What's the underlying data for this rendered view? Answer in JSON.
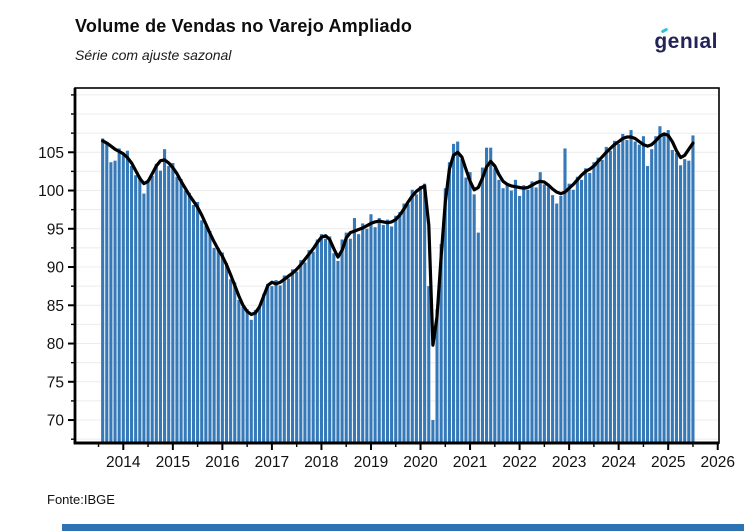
{
  "header": {
    "title": "Volume de Vendas no Varejo Ampliado",
    "subtitle": "Série com ajuste sazonal",
    "logo_text": "genıal"
  },
  "footer": {
    "source": "Fonte:IBGE"
  },
  "colors": {
    "bar": "#3579b8",
    "trend_line": "#000000",
    "frame": "#000000",
    "grid": "#ececec",
    "logo_navy": "#23235a",
    "logo_teal": "#2fc3cc",
    "footer_bar": "#2e74b5"
  },
  "chart_data": {
    "type": "bar",
    "title": "Volume de Vendas no Varejo Ampliado",
    "subtitle": "Série com ajuste sazonal",
    "source": "Fonte:IBGE",
    "frequency": "monthly",
    "x_start": "2013-08",
    "x_end": "2025-07",
    "x_tick_years": [
      2014,
      2015,
      2016,
      2017,
      2018,
      2019,
      2020,
      2021,
      2022,
      2023,
      2024,
      2025,
      2026
    ],
    "y_ticks": [
      70,
      75,
      80,
      85,
      90,
      95,
      100,
      105
    ],
    "ylim": [
      67.0,
      113.4
    ],
    "grid": "horizontal, every 2.5",
    "legend_position": "none",
    "series": [
      {
        "name": "bars_seasonally_adjusted_index",
        "type": "bar",
        "values": [
          106.8,
          106.2,
          103.7,
          103.9,
          105.5,
          104.6,
          105.2,
          103.2,
          102.0,
          101.8,
          99.6,
          101.4,
          101.9,
          103.5,
          102.6,
          105.4,
          103.2,
          103.6,
          101.8,
          101.5,
          100.0,
          99.7,
          98.1,
          98.5,
          96.1,
          95.4,
          94.7,
          92.5,
          92.5,
          91.9,
          90.5,
          88.4,
          88.0,
          85.7,
          84.8,
          84.5,
          83.1,
          84.4,
          84.7,
          86.5,
          87.8,
          87.5,
          88.3,
          87.6,
          88.9,
          88.5,
          89.7,
          89.4,
          90.9,
          90.6,
          92.2,
          92.0,
          93.6,
          94.3,
          93.7,
          94.0,
          91.8,
          90.8,
          93.6,
          94.5,
          93.7,
          96.4,
          94.3,
          95.7,
          95.0,
          96.9,
          95.2,
          96.4,
          95.5,
          96.2,
          95.3,
          96.7,
          97.2,
          98.3,
          98.2,
          100.1,
          99.5,
          100.6,
          100.9,
          87.5,
          70.0,
          84.5,
          93.0,
          100.3,
          103.7,
          106.1,
          106.4,
          104.1,
          101.7,
          102.4,
          99.5,
          94.5,
          103.0,
          105.6,
          105.6,
          102.9,
          101.4,
          100.3,
          101.0,
          100.0,
          101.4,
          99.3,
          100.7,
          100.1,
          101.2,
          100.4,
          102.4,
          100.8,
          100.5,
          99.4,
          98.3,
          99.3,
          105.5,
          100.9,
          100.1,
          101.8,
          101.4,
          102.9,
          102.3,
          103.7,
          104.3,
          104.0,
          105.7,
          105.2,
          106.5,
          106.1,
          107.4,
          106.6,
          107.9,
          106.4,
          106.0,
          107.1,
          103.2,
          105.4,
          107.1,
          108.4,
          107.5,
          107.9,
          105.3,
          104.9,
          103.3,
          104.1,
          103.9,
          107.2
        ]
      },
      {
        "name": "trend_line",
        "type": "line",
        "values": [
          106.5,
          106.2,
          105.8,
          105.4,
          105.1,
          104.8,
          104.3,
          103.6,
          102.6,
          101.6,
          100.9,
          101.2,
          102.2,
          103.2,
          103.9,
          104.0,
          103.6,
          103.0,
          102.2,
          101.2,
          100.3,
          99.4,
          98.6,
          97.8,
          96.8,
          95.6,
          94.4,
          93.3,
          92.3,
          91.4,
          90.3,
          89.0,
          87.6,
          86.2,
          85.0,
          84.2,
          83.8,
          84.0,
          84.8,
          86.2,
          87.6,
          88.0,
          87.8,
          88.0,
          88.4,
          88.8,
          89.2,
          89.7,
          90.3,
          91.0,
          91.7,
          92.4,
          93.2,
          93.9,
          94.1,
          93.6,
          92.4,
          91.3,
          92.2,
          93.8,
          94.5,
          94.7,
          94.9,
          95.1,
          95.4,
          95.7,
          95.9,
          96.0,
          95.9,
          95.8,
          95.9,
          96.2,
          96.8,
          97.6,
          98.5,
          99.3,
          99.9,
          100.3,
          100.6,
          95.5,
          79.8,
          83.5,
          91.5,
          98.5,
          102.8,
          104.6,
          105.0,
          104.4,
          102.8,
          101.2,
          100.1,
          100.4,
          101.6,
          103.1,
          103.8,
          103.2,
          102.1,
          101.2,
          100.8,
          100.6,
          100.5,
          100.4,
          100.3,
          100.4,
          100.7,
          101.0,
          101.2,
          101.1,
          100.7,
          100.2,
          99.8,
          99.6,
          99.8,
          100.3,
          100.8,
          101.4,
          102.0,
          102.5,
          102.8,
          103.2,
          103.8,
          104.4,
          105.0,
          105.5,
          106.0,
          106.4,
          106.8,
          107.0,
          107.0,
          106.8,
          106.4,
          106.0,
          105.8,
          106.0,
          106.5,
          107.1,
          107.4,
          107.2,
          106.4,
          105.2,
          104.3,
          104.6,
          105.4,
          106.2
        ]
      }
    ]
  }
}
